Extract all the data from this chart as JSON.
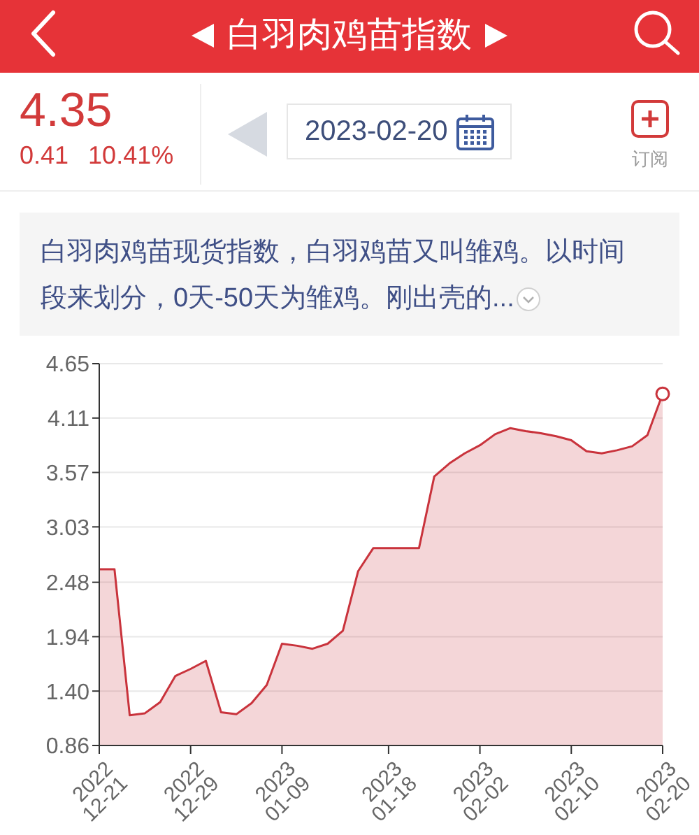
{
  "chart_data": {
    "type": "area",
    "title": "白羽肉鸡苗指数",
    "subtitle": "白羽肉鸡苗现货指数，白羽鸡苗又叫雏鸡。以时间段来划分，0天-50天为雏鸡。刚出壳的...",
    "annotations": [
      "4.35",
      "0.41",
      "10.41%",
      "2023-02-20",
      "订阅"
    ],
    "categories": [
      "2022\n12-21",
      null,
      null,
      null,
      null,
      null,
      "2022\n12-29",
      null,
      null,
      null,
      null,
      null,
      "2023\n01-09",
      null,
      null,
      null,
      null,
      null,
      null,
      "2023\n01-18",
      null,
      null,
      null,
      null,
      null,
      "2023\n02-02",
      null,
      null,
      null,
      null,
      null,
      "2023\n02-10",
      null,
      null,
      null,
      null,
      null,
      "2023\n02-20"
    ],
    "series": [
      {
        "color": "#c9333c",
        "values": [
          2.61,
          2.61,
          1.16,
          1.18,
          1.29,
          1.55,
          1.62,
          1.7,
          1.19,
          1.17,
          1.28,
          1.46,
          1.87,
          1.85,
          1.82,
          1.87,
          2.0,
          2.59,
          2.82,
          2.82,
          2.82,
          2.82,
          3.53,
          3.66,
          3.76,
          3.84,
          3.95,
          4.01,
          3.98,
          3.96,
          3.93,
          3.89,
          3.78,
          3.76,
          3.79,
          3.83,
          3.94,
          4.35
        ]
      },
      {
        "type": "scatter",
        "marker": "circle",
        "color": "#c9333c",
        "values": [
          null,
          null,
          null,
          null,
          null,
          null,
          null,
          null,
          null,
          null,
          null,
          null,
          null,
          null,
          null,
          null,
          null,
          null,
          null,
          null,
          null,
          null,
          null,
          null,
          null,
          null,
          null,
          null,
          null,
          null,
          null,
          null,
          null,
          null,
          null,
          null,
          null,
          4.35
        ]
      }
    ],
    "ylim": [
      0.86,
      4.65
    ],
    "yticks": [
      0.86,
      {
        "value": 1.4,
        "label": "1.40"
      },
      1.94,
      2.48,
      3.03,
      3.57,
      4.11,
      4.65
    ],
    "grid": "y"
  }
}
